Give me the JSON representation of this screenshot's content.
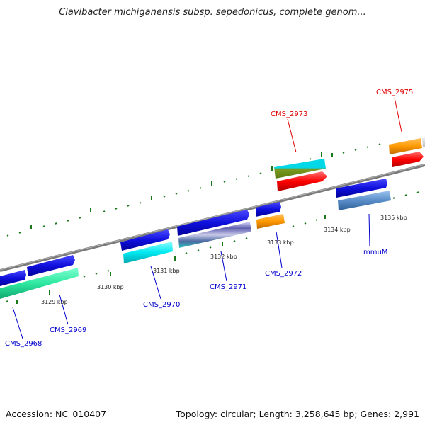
{
  "title": "Clavibacter michiganensis subsp. sepedonicus, complete genom...",
  "accession": "Accession: NC_010407",
  "topology": "Topology: circular; Length: 3,258,645 bp; Genes: 2,991",
  "kbp_labels": [
    "3129 kbp",
    "3130 kbp",
    "3131 kbp",
    "3132 kbp",
    "3133 kbp",
    "3134 kbp",
    "3135 kbp"
  ],
  "genes": [
    {
      "name": "CMS_2968",
      "color": "#0000cc"
    },
    {
      "name": "CMS_2969",
      "color": "#0000cc"
    },
    {
      "name": "CMS_2970",
      "color": "#0000cc"
    },
    {
      "name": "CMS_2971",
      "color": "#0000cc"
    },
    {
      "name": "CMS_2972",
      "color": "#0000cc"
    },
    {
      "name": "mmuM",
      "color": "#0000cc"
    },
    {
      "name": "CMS_2973",
      "color": "#e00000"
    },
    {
      "name": "CMS_2975",
      "color": "#e00000"
    }
  ],
  "colors": {
    "backbone": "#8a8a8a",
    "tick": "#1a7a1a",
    "cds_forward": "#1010dd",
    "green_feature": "#2ee8a0",
    "cyan_feature": "#00e8f0",
    "orange_feature": "#ff9900",
    "red_feature": "#ff0000",
    "steel_feature": "#5a8ec8"
  }
}
